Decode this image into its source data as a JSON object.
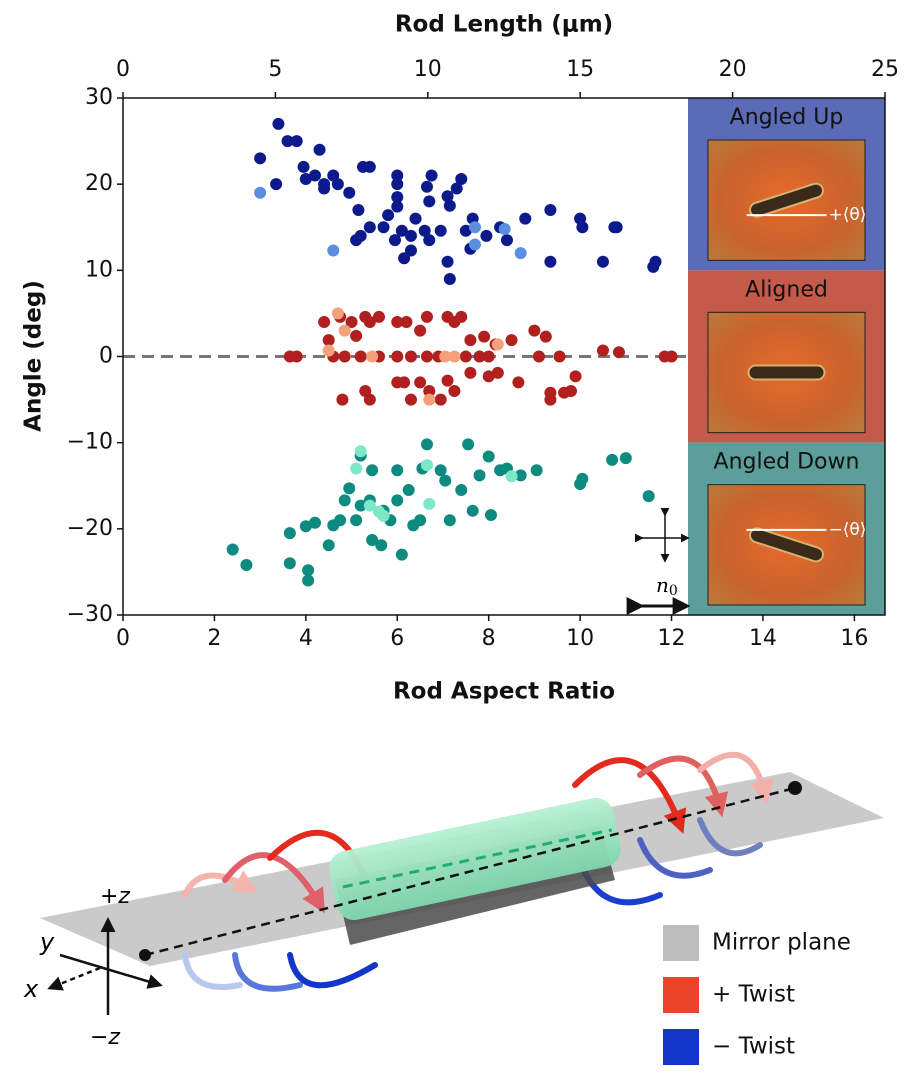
{
  "chart_data": {
    "type": "scatter",
    "xlabel": "Rod Aspect Ratio",
    "x2label": "Rod Length (μm)",
    "ylabel": "Angle (deg)",
    "xlim": [
      0,
      16.67
    ],
    "xticks": [
      0,
      2,
      4,
      6,
      8,
      10,
      12,
      14,
      16
    ],
    "x2lim": [
      0,
      25
    ],
    "x2ticks": [
      0,
      5,
      10,
      15,
      20,
      25
    ],
    "ylim": [
      -30,
      30
    ],
    "yticks": [
      {
        "value": -30,
        "label": "−30"
      },
      {
        "value": -20,
        "label": "−20"
      },
      {
        "value": -10,
        "label": "−10"
      },
      0,
      10,
      20,
      30
    ],
    "zero_line": true,
    "series": [
      {
        "color": "#0d1a8c",
        "x": [
          3.0,
          3.4,
          3.6,
          3.8,
          3.35,
          3.95,
          4.3,
          4.2,
          4.0,
          4.4,
          4.6,
          4.7,
          4.4,
          5.15,
          4.95,
          5.25,
          5.4,
          5.1,
          5.2,
          5.4,
          5.7,
          6.0,
          6.0,
          6.0,
          6.0,
          6.1,
          5.95,
          5.8,
          6.3,
          6.4,
          6.6,
          6.7,
          6.75,
          6.7,
          6.95,
          6.65,
          7.1,
          7.15,
          7.3,
          7.4,
          7.1,
          7.15,
          7.5,
          7.6,
          7.65,
          7.95,
          8.25,
          8.4,
          8.8,
          9.35,
          9.35,
          10.0,
          10.05,
          10.5,
          10.75,
          10.8,
          11.65,
          11.6,
          6.3,
          6.15
        ],
        "values": [
          23,
          27,
          25,
          25,
          20,
          22,
          24,
          21,
          20.6,
          20,
          21,
          20,
          19.5,
          17,
          19,
          22,
          22,
          13.5,
          14,
          15,
          15,
          21,
          20,
          18.5,
          17.4,
          14.6,
          13.5,
          16.4,
          14,
          16,
          14.6,
          18,
          21,
          13.5,
          14.6,
          19.7,
          18.6,
          17.5,
          19.5,
          20.6,
          11,
          9,
          14.6,
          12.5,
          16,
          14,
          15,
          13.5,
          16,
          17,
          11,
          16,
          15,
          11,
          15,
          15,
          11,
          10.4,
          12.3,
          11.4
        ]
      },
      {
        "color": "#5a8fe0",
        "x": [
          3.0,
          4.6,
          7.7,
          7.7,
          8.35,
          8.7
        ],
        "values": [
          19,
          12.3,
          15,
          13,
          14.8,
          12
        ]
      },
      {
        "color": "#b0201e",
        "x": [
          4.4,
          4.5,
          4.75,
          5.0,
          5.1,
          5.3,
          5.4,
          5.6,
          6.0,
          6.2,
          6.5,
          6.65,
          7.1,
          7.25,
          7.4,
          7.6,
          7.9,
          8.15,
          8.5,
          9.0,
          9.25,
          3.65,
          3.8,
          4.6,
          4.85,
          5.2,
          5.6,
          6.0,
          6.3,
          6.65,
          6.9,
          7.5,
          7.8,
          8.0,
          9.1,
          9.55,
          10.5,
          10.85,
          11.85,
          12.0,
          4.8,
          5.3,
          5.4,
          6.0,
          6.15,
          6.3,
          6.5,
          6.7,
          6.95,
          7.1,
          7.25,
          7.6,
          8.0,
          8.2,
          8.65,
          9.35,
          9.35,
          9.8,
          9.9,
          9.65
        ],
        "values": [
          4,
          1.9,
          4.6,
          4,
          2.4,
          4.6,
          4,
          4.6,
          4,
          4,
          3,
          4.6,
          4.6,
          4,
          4.6,
          1.9,
          2.3,
          1.4,
          1.9,
          3,
          2.3,
          0,
          0,
          0,
          0,
          0,
          0,
          0,
          0,
          0,
          0,
          0,
          0,
          0,
          0,
          0,
          0.7,
          0.5,
          0,
          0,
          -5,
          -4,
          -5,
          -3,
          -3,
          -5,
          -3,
          -4,
          -5,
          -2.8,
          -4,
          -1.9,
          -2.3,
          -1.9,
          -3,
          -5,
          -4.2,
          -4,
          -2.3,
          -4.2
        ]
      },
      {
        "color": "#f4a07a",
        "x": [
          4.7,
          4.85,
          4.5,
          5.45,
          6.7,
          7.05,
          7.25,
          8.2
        ],
        "values": [
          5,
          3,
          0.7,
          0,
          -5,
          0,
          0,
          1.4
        ]
      },
      {
        "color": "#0e8a80",
        "x": [
          2.4,
          2.7,
          3.65,
          3.65,
          4.0,
          4.05,
          4.05,
          4.2,
          4.5,
          4.6,
          4.75,
          4.85,
          4.95,
          5.1,
          5.2,
          5.4,
          5.45,
          5.65,
          5.7,
          5.85,
          6.0,
          6.0,
          6.1,
          6.25,
          6.35,
          6.5,
          6.55,
          6.65,
          6.95,
          7.05,
          7.15,
          7.4,
          7.55,
          7.65,
          7.8,
          8.0,
          8.05,
          8.25,
          8.4,
          8.7,
          9.05,
          10.0,
          10.05,
          10.7,
          11.0,
          11.5,
          5.45,
          5.2
        ],
        "values": [
          -22.4,
          -24.2,
          -24,
          -20.5,
          -19.7,
          -24.8,
          -26,
          -19.3,
          -21.9,
          -19.6,
          -19,
          -16.7,
          -15.3,
          -19,
          -17.3,
          -16.7,
          -21.3,
          -21.9,
          -17.9,
          -19,
          -13.2,
          -16.7,
          -23,
          -15.5,
          -19.6,
          -19,
          -13,
          -10.2,
          -13.2,
          -14.4,
          -19,
          -15.5,
          -10.2,
          -17.9,
          -13.8,
          -11.6,
          -18.4,
          -13.2,
          -13,
          -13.8,
          -13.2,
          -14.8,
          -14.2,
          -12,
          -11.8,
          -16.2,
          -13.2,
          -11.5
        ]
      },
      {
        "color": "#7de8c8",
        "x": [
          5.2,
          5.1,
          5.4,
          5.6,
          5.7,
          6.65,
          6.7,
          8.5
        ],
        "values": [
          -11,
          -13,
          -17.3,
          -18,
          -18.5,
          -12.6,
          -17.1,
          -13.9
        ]
      }
    ],
    "panels": [
      {
        "label": "Angled Up",
        "annotation": "+⟨θ⟩",
        "color": "#5b6bb8"
      },
      {
        "label": "Aligned",
        "color": "#c55a4a"
      },
      {
        "label": "Angled Down",
        "annotation": "−⟨θ⟩",
        "color": "#5c9e9a"
      }
    ],
    "polarizer_label": {
      "text": "n",
      "subscript": "0"
    }
  },
  "diagram": {
    "axes": {
      "plus_z": "+z",
      "y": "y",
      "x": "x",
      "minus_z": "−z"
    },
    "legend": [
      {
        "label": "Mirror plane",
        "color": "#bdbdbd"
      },
      {
        "label": "+ Twist",
        "color": "#e8452c"
      },
      {
        "label": "− Twist",
        "color": "#1336c8"
      }
    ]
  }
}
